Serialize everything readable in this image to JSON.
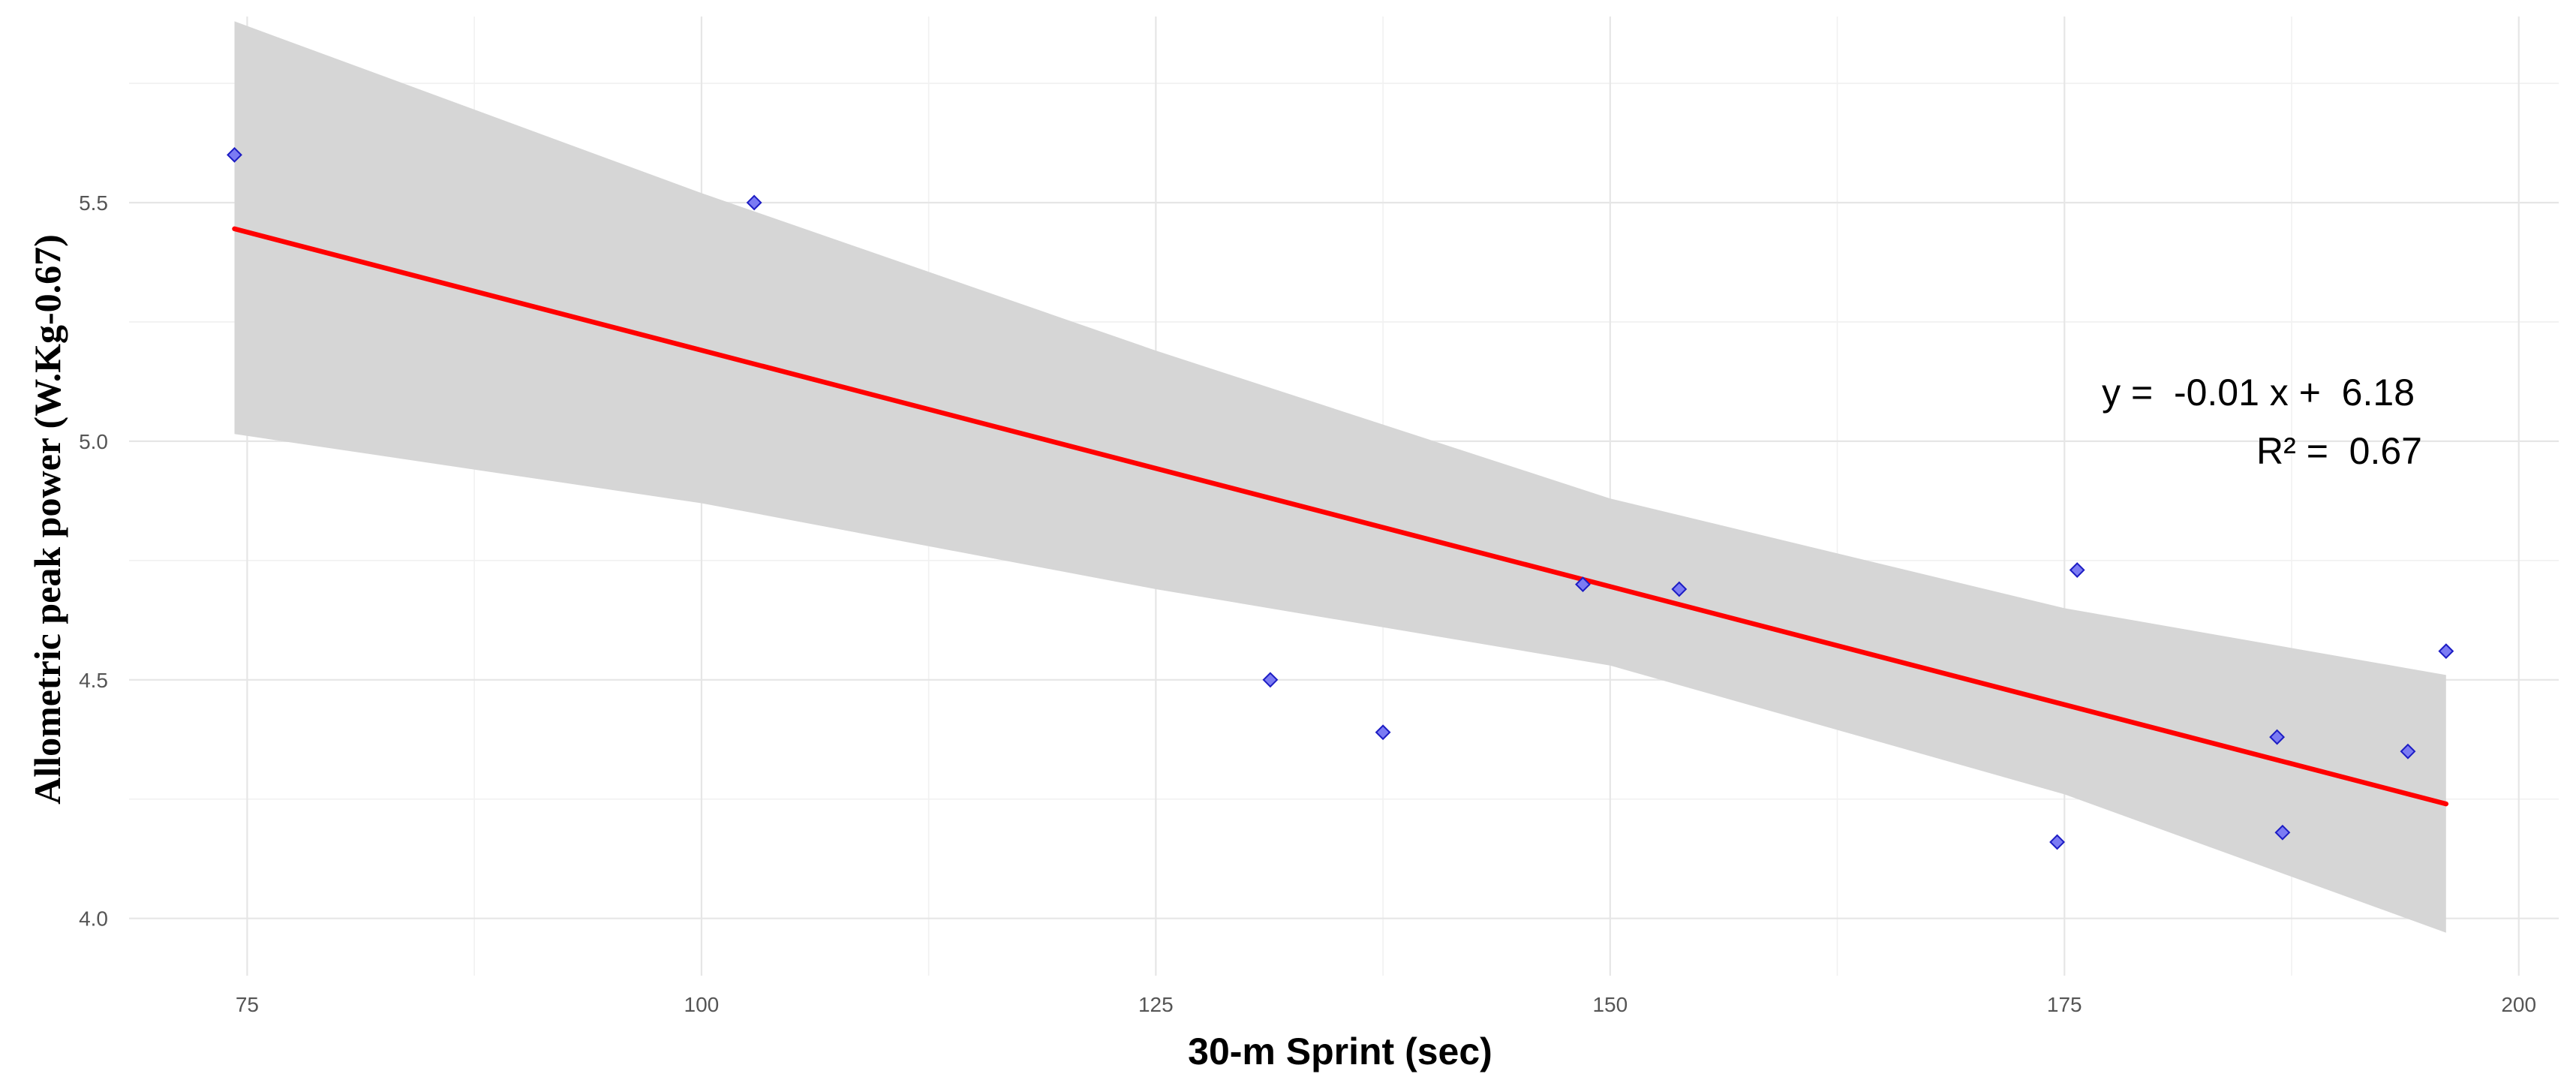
{
  "chart_data": {
    "type": "scatter",
    "title": "",
    "xlabel": "30-m Sprint (sec)",
    "ylabel": "Allometric peak power (W.Kg-0.67)",
    "xlim": [
      68.5,
      202.2
    ],
    "ylim": [
      3.88,
      5.89
    ],
    "x_ticks": [
      75,
      100,
      125,
      150,
      175,
      200
    ],
    "x_tick_labels": [
      "75",
      "100",
      "125",
      "150",
      "175",
      "200"
    ],
    "y_ticks": [
      4.0,
      4.5,
      5.0,
      5.5
    ],
    "y_tick_labels": [
      "4.0",
      "4.5",
      "5.0",
      "5.5"
    ],
    "grid": true,
    "points": [
      {
        "x": 74.3,
        "y": 5.6
      },
      {
        "x": 102.9,
        "y": 5.5
      },
      {
        "x": 131.3,
        "y": 4.5
      },
      {
        "x": 137.5,
        "y": 4.39
      },
      {
        "x": 148.5,
        "y": 4.7
      },
      {
        "x": 153.8,
        "y": 4.69
      },
      {
        "x": 174.6,
        "y": 4.16
      },
      {
        "x": 175.7,
        "y": 4.73
      },
      {
        "x": 186.7,
        "y": 4.38
      },
      {
        "x": 187.0,
        "y": 4.18
      },
      {
        "x": 193.9,
        "y": 4.35
      },
      {
        "x": 196.0,
        "y": 4.56
      }
    ],
    "fit_line": {
      "x": [
        74.3,
        196.0
      ],
      "y": [
        5.445,
        4.24
      ]
    },
    "confidence_band": {
      "x": [
        74.3,
        100,
        125,
        150,
        175,
        196.0
      ],
      "upper": [
        5.88,
        5.52,
        5.19,
        4.88,
        4.65,
        4.51
      ],
      "lower": [
        5.015,
        4.87,
        4.69,
        4.53,
        4.26,
        3.97
      ]
    },
    "annotation": {
      "equation": "y =  -0.01 x +  6.18",
      "r_squared": "R² =  0.67"
    },
    "colors": {
      "point_fill": "#7b7bf3",
      "point_stroke": "#1c1cc4",
      "fit_line": "#ff0000",
      "band": "#d6d6d6"
    }
  }
}
